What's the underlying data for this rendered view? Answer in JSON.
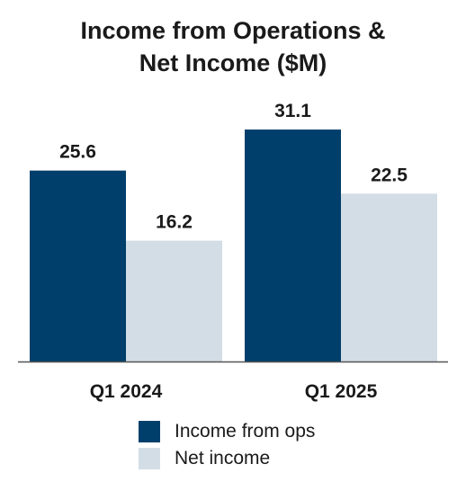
{
  "title_lines": [
    "Income from Operations &",
    "Net Income ($M)"
  ],
  "colors": {
    "income_from_ops": "#003f6b",
    "net_income": "#d3dde6",
    "axis": "#555555",
    "text": "#1a1a1a"
  },
  "chart_data": {
    "type": "bar",
    "title": "Income from Operations & Net Income ($M)",
    "categories": [
      "Q1 2024",
      "Q1 2025"
    ],
    "series": [
      {
        "name": "Income from ops",
        "values": [
          25.6,
          31.1
        ]
      },
      {
        "name": "Net income",
        "values": [
          16.2,
          22.5
        ]
      }
    ],
    "value_labels": [
      [
        "25.6",
        "31.1"
      ],
      [
        "16.2",
        "22.5"
      ]
    ],
    "xlabel": "",
    "ylabel": "",
    "ylim": [
      0,
      34
    ],
    "grid": false,
    "legend_position": "bottom"
  },
  "legend": [
    {
      "label": "Income from ops"
    },
    {
      "label": "Net income"
    }
  ]
}
